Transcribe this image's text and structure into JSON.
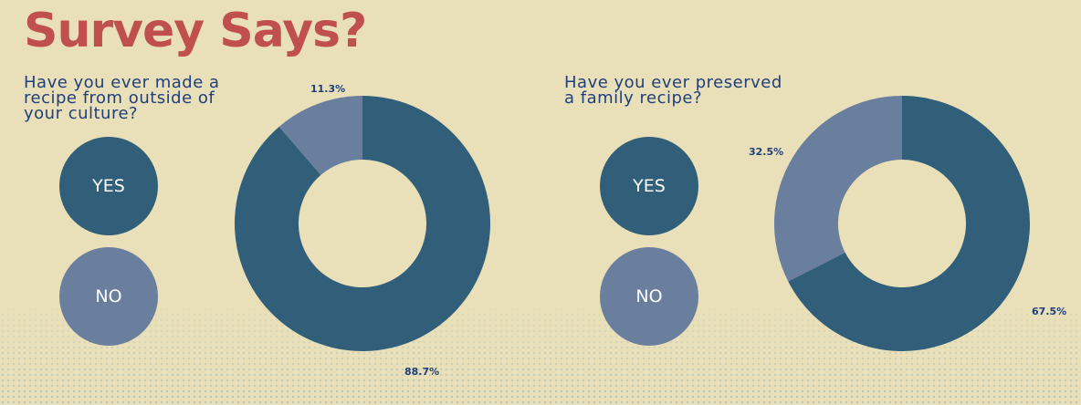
{
  "title": "Survey Says?",
  "colors": {
    "yes": "#315e78",
    "no": "#6a7f9e",
    "title": "#c0504d",
    "text": "#1f3f7a",
    "background": "#e9e0b9"
  },
  "legend": {
    "yes_label": "YES",
    "no_label": "NO"
  },
  "chart_data": [
    {
      "type": "pie",
      "title": "Have you ever made a\nrecipe from outside of\nyour culture?",
      "categories": [
        "YES",
        "NO"
      ],
      "values": [
        88.7,
        11.3
      ],
      "labels": [
        "88.7%",
        "11.3%"
      ]
    },
    {
      "type": "pie",
      "title": "Have you ever preserved\na family recipe?",
      "categories": [
        "YES",
        "NO"
      ],
      "values": [
        67.5,
        32.5
      ],
      "labels": [
        "67.5%",
        "32.5%"
      ]
    }
  ]
}
